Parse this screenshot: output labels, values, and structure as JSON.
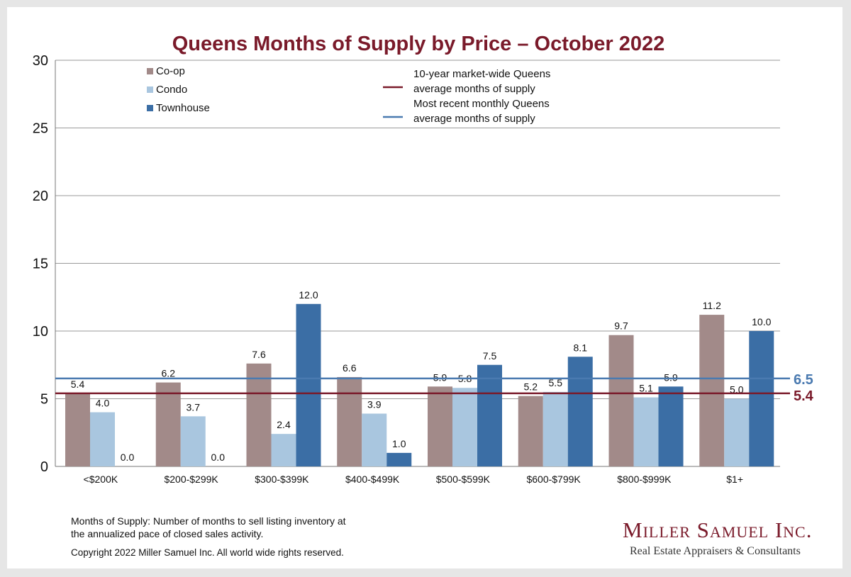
{
  "chart_data": {
    "type": "bar",
    "title": "Queens Months of Supply by Price – October 2022",
    "categories": [
      "<$200K",
      "$200-$299K",
      "$300-$399K",
      "$400-$499K",
      "$500-$599K",
      "$600-$799K",
      "$800-$999K",
      "$1+"
    ],
    "series": [
      {
        "name": "Co-op",
        "color": "#a28a89",
        "values": [
          5.4,
          6.2,
          7.6,
          6.6,
          5.9,
          5.2,
          9.7,
          11.2
        ],
        "labels": [
          "5.4",
          "6.2",
          "7.6",
          "6.6",
          "5.9",
          "5.2",
          "9.7",
          "11.2"
        ]
      },
      {
        "name": "Condo",
        "color": "#a9c6df",
        "values": [
          4.0,
          3.7,
          2.4,
          3.9,
          5.8,
          5.5,
          5.1,
          5.0
        ],
        "labels": [
          "4.0",
          "3.7",
          "2.4",
          "3.9",
          "5.8",
          "5.5",
          "5.1",
          "5.0"
        ]
      },
      {
        "name": "Townhouse",
        "color": "#3b6ea5",
        "values": [
          0.0,
          0.0,
          12.0,
          1.0,
          7.5,
          8.1,
          5.9,
          10.0
        ],
        "labels": [
          "0.0",
          "0.0",
          "12.0",
          "1.0",
          "7.5",
          "8.1",
          "5.9",
          "10.0"
        ]
      }
    ],
    "reference_lines": [
      {
        "name_lines": [
          "10-year market-wide Queens",
          "average months of supply"
        ],
        "value": 5.4,
        "label": "5.4",
        "color": "#7a1a2a"
      },
      {
        "name_lines": [
          "Most recent monthly Queens",
          "average months of supply"
        ],
        "value": 6.5,
        "label": "6.5",
        "color": "#4a7ab0"
      }
    ],
    "ylim": [
      0,
      30
    ],
    "yticks": [
      0,
      5,
      10,
      15,
      20,
      25,
      30
    ],
    "grid": true,
    "legend_placement": "top-left"
  },
  "footnote": {
    "line1": "Months of Supply: Number of months to sell listing inventory at",
    "line2": "the annualized pace of closed sales activity.",
    "copyright": "Copyright 2022 Miller Samuel Inc.  All world wide rights reserved."
  },
  "logo": {
    "name": "Miller Samuel Inc.",
    "tagline": "Real Estate Appraisers & Consultants"
  }
}
